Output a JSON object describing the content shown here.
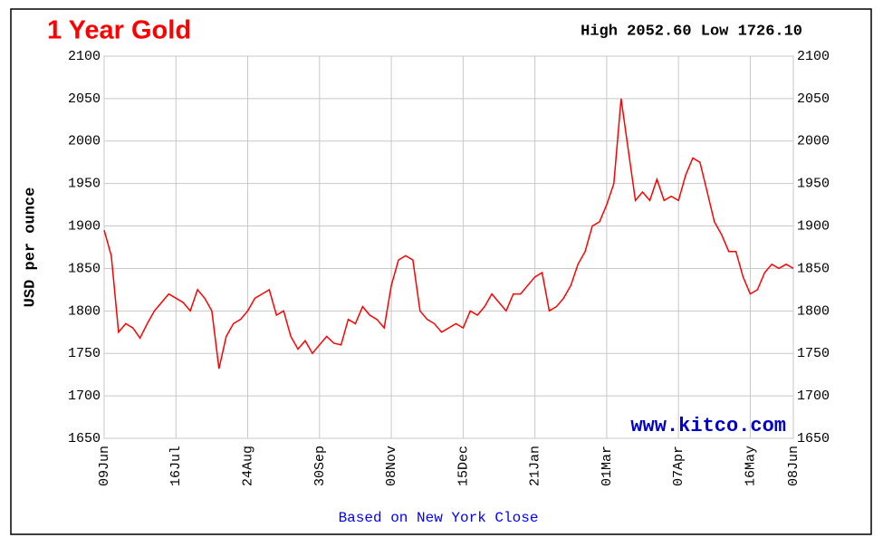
{
  "chart_data": {
    "type": "line",
    "title": "1 Year Gold",
    "subtitle": "High 2052.60 Low 1726.10",
    "y_label": "USD per ounce",
    "watermark": "www.kitco.com",
    "footer": "Based on New York Close",
    "categories": [
      "09Jun",
      null,
      null,
      null,
      null,
      null,
      null,
      null,
      null,
      null,
      "16Jul",
      null,
      null,
      null,
      null,
      null,
      null,
      null,
      null,
      null,
      "24Aug",
      null,
      null,
      null,
      null,
      null,
      null,
      null,
      null,
      null,
      "30Sep",
      null,
      null,
      null,
      null,
      null,
      null,
      null,
      null,
      null,
      "08Nov",
      null,
      null,
      null,
      null,
      null,
      null,
      null,
      null,
      null,
      "15Dec",
      null,
      null,
      null,
      null,
      null,
      null,
      null,
      null,
      null,
      "21Jan",
      null,
      null,
      null,
      null,
      null,
      null,
      null,
      null,
      null,
      "01Mar",
      null,
      null,
      null,
      null,
      null,
      null,
      null,
      null,
      null,
      "07Apr",
      null,
      null,
      null,
      null,
      null,
      null,
      null,
      null,
      null,
      "16May",
      null,
      null,
      null,
      null,
      null,
      "08Jun"
    ],
    "series": [
      {
        "name": "Gold",
        "color": "#ff0000",
        "values": [
          1895,
          1865,
          1775,
          1785,
          1780,
          1768,
          1785,
          1800,
          1810,
          1820,
          1815,
          1810,
          1800,
          1825,
          1815,
          1800,
          1732,
          1770,
          1785,
          1790,
          1800,
          1815,
          1820,
          1825,
          1795,
          1800,
          1770,
          1755,
          1765,
          1750,
          1760,
          1770,
          1762,
          1760,
          1790,
          1785,
          1805,
          1795,
          1790,
          1780,
          1830,
          1860,
          1865,
          1860,
          1800,
          1790,
          1785,
          1775,
          1780,
          1785,
          1780,
          1800,
          1795,
          1805,
          1820,
          1810,
          1800,
          1820,
          1820,
          1830,
          1840,
          1845,
          1800,
          1805,
          1815,
          1830,
          1855,
          1870,
          1900,
          1905,
          1925,
          1950,
          2050,
          1990,
          1930,
          1940,
          1930,
          1955,
          1930,
          1935,
          1930,
          1960,
          1980,
          1975,
          1940,
          1905,
          1890,
          1870,
          1870,
          1840,
          1820,
          1825,
          1845,
          1855,
          1850,
          1855,
          1850
        ]
      }
    ],
    "ylim": [
      1650,
      2100
    ],
    "yticks": [
      1650,
      1700,
      1750,
      1800,
      1850,
      1900,
      1950,
      2000,
      2050,
      2100
    ],
    "grid": true
  }
}
